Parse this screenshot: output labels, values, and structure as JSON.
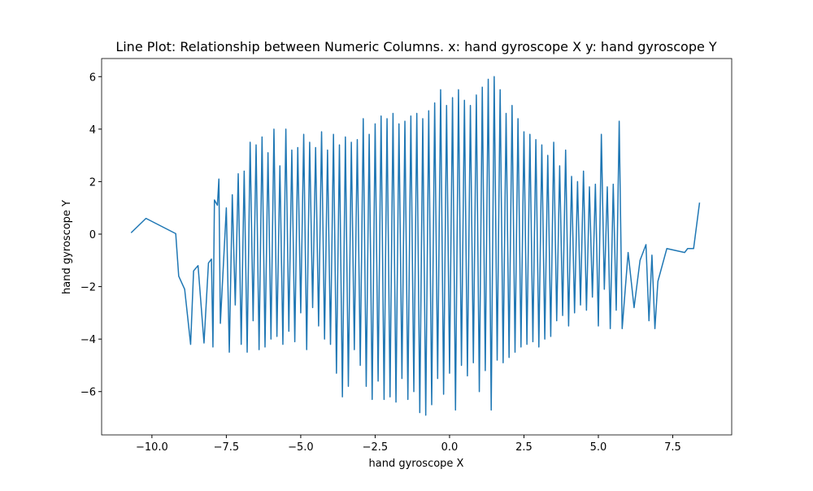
{
  "chart_data": {
    "type": "line",
    "title": "Line Plot: Relationship between Numeric Columns. x: hand gyroscope X y: hand gyroscope Y",
    "x_label": "hand gyroscope X",
    "y_label": "hand gyroscope Y",
    "xlim": [
      -11.69,
      9.48
    ],
    "ylim": [
      -7.65,
      6.69
    ],
    "xticks": [
      {
        "value": -10,
        "label": "−10.0"
      },
      {
        "value": -7.5,
        "label": "−7.5"
      },
      {
        "value": -5,
        "label": "−5.0"
      },
      {
        "value": -2.5,
        "label": "−2.5"
      },
      {
        "value": 0,
        "label": "0.0"
      },
      2.5,
      {
        "value": 5,
        "label": "5.0"
      },
      7.5
    ],
    "yticks": [
      {
        "value": -6,
        "label": "−6"
      },
      {
        "value": -4,
        "label": "−4"
      },
      {
        "value": -2,
        "label": "−2"
      },
      0,
      2,
      4,
      6
    ],
    "series": [
      {
        "color": "#1f77b4",
        "x": [
          -10.7,
          -10.2,
          -9.2,
          -9.1,
          -8.9,
          -8.7,
          -8.6,
          -8.45,
          -8.25,
          -8.1,
          -8.0,
          -7.95,
          -7.9,
          -7.8,
          -7.75,
          -7.7,
          -7.5,
          -7.4,
          -7.3,
          -7.2,
          -7.1,
          -7.0,
          -6.9,
          -6.8,
          -6.7,
          -6.6,
          -6.5,
          -6.4,
          -6.3,
          -6.2,
          -6.1,
          -6.0,
          -5.9,
          -5.8,
          -5.7,
          -5.6,
          -5.5,
          -5.4,
          -5.3,
          -5.2,
          -5.1,
          -5.0,
          -4.9,
          -4.8,
          -4.7,
          -4.6,
          -4.5,
          -4.4,
          -4.3,
          -4.2,
          -4.1,
          -4.0,
          -3.9,
          -3.8,
          -3.7,
          -3.6,
          -3.5,
          -3.4,
          -3.3,
          -3.2,
          -3.1,
          -3.0,
          -2.9,
          -2.8,
          -2.7,
          -2.6,
          -2.5,
          -2.4,
          -2.3,
          -2.2,
          -2.1,
          -2.0,
          -1.9,
          -1.8,
          -1.7,
          -1.6,
          -1.5,
          -1.4,
          -1.3,
          -1.2,
          -1.1,
          -1.0,
          -0.9,
          -0.8,
          -0.7,
          -0.6,
          -0.5,
          -0.4,
          -0.3,
          -0.2,
          -0.1,
          0.0,
          0.1,
          0.2,
          0.3,
          0.4,
          0.5,
          0.6,
          0.7,
          0.8,
          0.9,
          1.0,
          1.1,
          1.2,
          1.3,
          1.4,
          1.5,
          1.6,
          1.7,
          1.8,
          1.9,
          2.0,
          2.1,
          2.2,
          2.3,
          2.4,
          2.5,
          2.6,
          2.7,
          2.8,
          2.9,
          3.0,
          3.1,
          3.2,
          3.3,
          3.4,
          3.5,
          3.6,
          3.7,
          3.8,
          3.9,
          4.0,
          4.1,
          4.2,
          4.3,
          4.4,
          4.5,
          4.6,
          4.7,
          4.8,
          4.9,
          5.0,
          5.1,
          5.2,
          5.3,
          5.4,
          5.5,
          5.6,
          5.7,
          5.8,
          6.0,
          6.2,
          6.4,
          6.6,
          6.7,
          6.8,
          6.9,
          7.0,
          7.3,
          7.9,
          8.0,
          8.2,
          8.4
        ],
        "values": [
          0.05,
          0.6,
          0.02,
          -1.6,
          -2.1,
          -4.2,
          -1.4,
          -1.2,
          -4.15,
          -1.1,
          -0.95,
          -4.3,
          1.3,
          1.1,
          2.1,
          -3.4,
          1.0,
          -4.5,
          1.5,
          -2.7,
          2.3,
          -4.2,
          2.4,
          -4.5,
          3.5,
          -3.3,
          3.4,
          -4.4,
          3.7,
          -4.3,
          3.1,
          -4.0,
          4.0,
          -3.9,
          2.6,
          -4.2,
          4.0,
          -3.7,
          3.2,
          -4.1,
          3.3,
          -3.0,
          3.8,
          -4.4,
          3.5,
          -2.8,
          3.3,
          -3.5,
          3.9,
          -4.0,
          3.2,
          -4.2,
          3.8,
          -5.3,
          3.4,
          -6.2,
          3.7,
          -5.8,
          3.5,
          -4.4,
          3.6,
          -5.0,
          4.4,
          -5.8,
          3.8,
          -6.3,
          4.2,
          -5.6,
          4.5,
          -6.3,
          4.4,
          -6.2,
          4.6,
          -6.4,
          4.2,
          -5.5,
          4.3,
          -6.3,
          4.5,
          -6.0,
          4.6,
          -6.8,
          4.4,
          -6.9,
          4.7,
          -6.5,
          5.0,
          -5.5,
          5.5,
          -6.1,
          4.9,
          -5.3,
          5.2,
          -6.7,
          5.5,
          -5.0,
          5.1,
          -5.4,
          4.9,
          -4.9,
          5.3,
          -6.0,
          5.6,
          -5.2,
          5.9,
          -6.7,
          6.0,
          -4.8,
          5.5,
          -4.9,
          4.6,
          -4.7,
          4.9,
          -4.5,
          4.4,
          -4.3,
          3.9,
          -4.2,
          3.8,
          -4.1,
          3.6,
          -4.3,
          3.4,
          -4.0,
          3.0,
          -3.9,
          3.5,
          -3.3,
          2.6,
          -3.1,
          3.2,
          -3.5,
          2.2,
          -3.0,
          2.0,
          -2.7,
          2.4,
          -2.9,
          1.8,
          -2.4,
          1.9,
          -3.5,
          3.8,
          -2.1,
          1.8,
          -3.6,
          1.9,
          -2.9,
          4.3,
          -3.6,
          -0.7,
          -2.8,
          -1.0,
          -0.4,
          -3.3,
          -0.8,
          -3.6,
          -1.8,
          -0.55,
          -0.7,
          -0.55,
          -0.55,
          1.2
        ]
      }
    ]
  }
}
